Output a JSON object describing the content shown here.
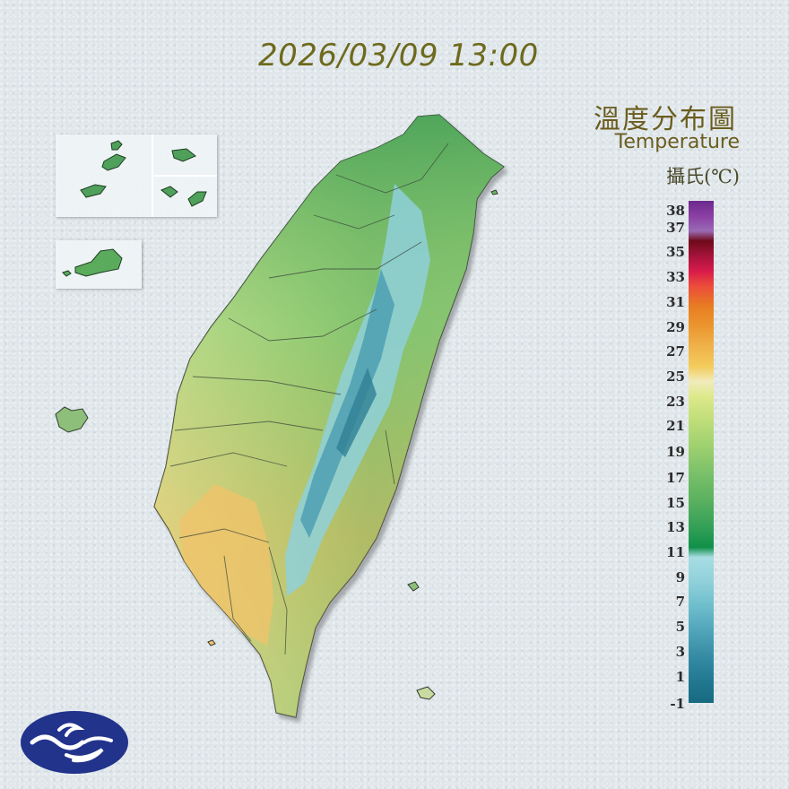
{
  "header": {
    "datetime": "2026/03/09 13:00"
  },
  "legend": {
    "title_zh": "溫度分布圖",
    "title_en": "Temperature",
    "unit": "攝氏(℃)",
    "ticks": [
      "38",
      "37",
      "35",
      "33",
      "31",
      "29",
      "27",
      "25",
      "23",
      "21",
      "19",
      "17",
      "15",
      "13",
      "11",
      "9",
      "7",
      "5",
      "3",
      "1",
      "-1"
    ]
  },
  "colors": {
    "lowland_warm": "#f2c36a",
    "plains": "#c8e08c",
    "mid": "#7cc26a",
    "north": "#5fb060",
    "mountain_cold": "#8fd0da",
    "peak_cold": "#3f8ca2",
    "logo_blue": "#22338c"
  },
  "icons": {
    "logo": "cwa-logo-icon"
  }
}
